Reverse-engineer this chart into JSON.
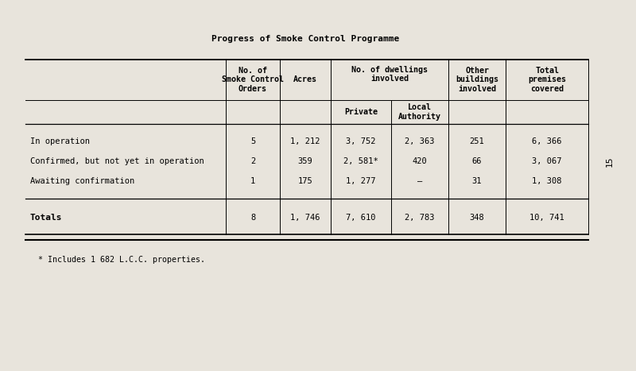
{
  "title": "Progress of Smoke Control Programme",
  "bg_color": "#e8e4dc",
  "page_number": "15",
  "footnote": "* Includes 1 682 L.C.C. properties.",
  "rows": [
    {
      "label": "In operation",
      "orders": "5",
      "acres": "1, 212",
      "private": "3, 752",
      "local": "2, 363",
      "other": "251",
      "total": "6, 366"
    },
    {
      "label": "Confirmed, but not yet in operation",
      "orders": "2",
      "acres": "359",
      "private": "2, 581*",
      "local": "420",
      "other": "66",
      "total": "3, 067"
    },
    {
      "label": "Awaiting confirmation",
      "orders": "1",
      "acres": "175",
      "private": "1, 277",
      "local": "–",
      "other": "31",
      "total": "1, 308"
    }
  ],
  "totals": {
    "label": "Totals",
    "orders": "8",
    "acres": "1, 746",
    "private": "7, 610",
    "local": "2, 783",
    "other": "348",
    "total": "10, 741"
  }
}
